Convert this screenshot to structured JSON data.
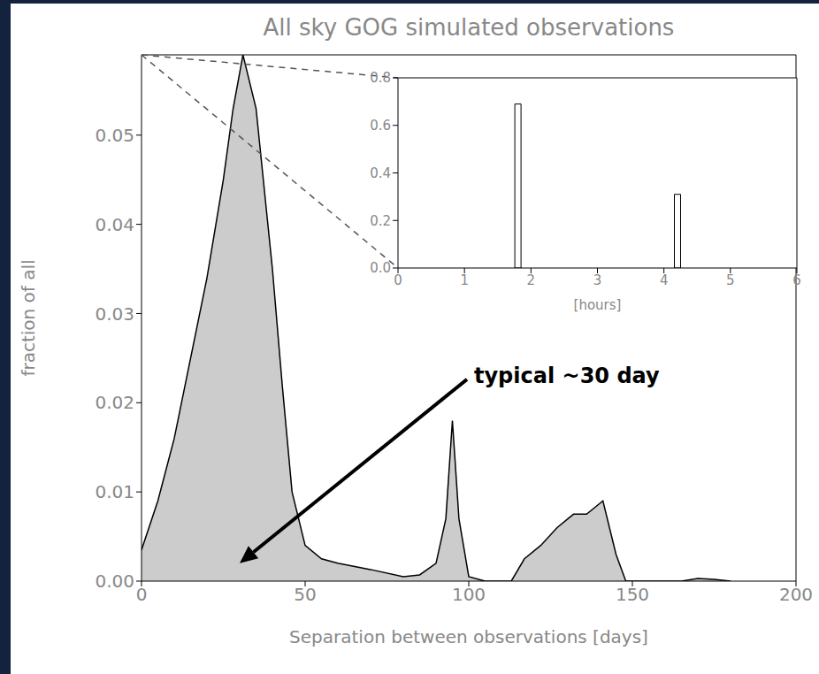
{
  "chart_data": [
    {
      "type": "area",
      "title": "All sky GOG simulated observations",
      "x_label": "Separation between observations [days]",
      "y_label": "fraction of all",
      "x": [
        0,
        5,
        10,
        15,
        20,
        25,
        28,
        31,
        35,
        40,
        43,
        46,
        50,
        55,
        60,
        70,
        80,
        85,
        90,
        93,
        95,
        97,
        100,
        105,
        113,
        117,
        122,
        127,
        132,
        136,
        141,
        145,
        148,
        165,
        170,
        175,
        180
      ],
      "values": [
        0.0035,
        0.009,
        0.016,
        0.025,
        0.034,
        0.045,
        0.053,
        0.059,
        0.053,
        0.035,
        0.022,
        0.01,
        0.004,
        0.0025,
        0.002,
        0.0013,
        0.0005,
        0.0007,
        0.002,
        0.007,
        0.018,
        0.007,
        0.0005,
        0,
        0,
        0.0025,
        0.004,
        0.006,
        0.0075,
        0.0075,
        0.009,
        0.003,
        0,
        0,
        0.0003,
        0.0002,
        0
      ],
      "color": "#cccccc",
      "xlim": [
        0,
        200
      ],
      "xticks": [
        0,
        50,
        100,
        150,
        200
      ],
      "ylim": [
        0,
        0.059
      ],
      "yticks": [
        {
          "value": 0,
          "label": "0.00"
        },
        {
          "value": 0.01,
          "label": "0.01"
        },
        {
          "value": 0.02,
          "label": "0.02"
        },
        {
          "value": 0.03,
          "label": "0.03"
        },
        {
          "value": 0.04,
          "label": "0.04"
        },
        {
          "value": 0.05,
          "label": "0.05"
        }
      ],
      "annotations": [
        {
          "text": "typical ~30 day",
          "x": 30,
          "y": 0.002
        }
      ]
    },
    {
      "type": "bar",
      "x_label": "[hours]",
      "x": [
        1.8,
        4.2
      ],
      "values": [
        0.69,
        0.31
      ],
      "color": "#ffffff",
      "xlim": [
        0,
        6
      ],
      "xticks": [
        0,
        1,
        2,
        3,
        4,
        5,
        6
      ],
      "ylim": [
        0,
        0.8
      ],
      "yticks": [
        {
          "value": 0,
          "label": "0.0"
        },
        {
          "value": 0.2,
          "label": "0.2"
        },
        {
          "value": 0.4,
          "label": "0.4"
        },
        {
          "value": 0.6,
          "label": "0.6"
        },
        {
          "value": 0.8,
          "label": "0.8"
        }
      ]
    }
  ]
}
